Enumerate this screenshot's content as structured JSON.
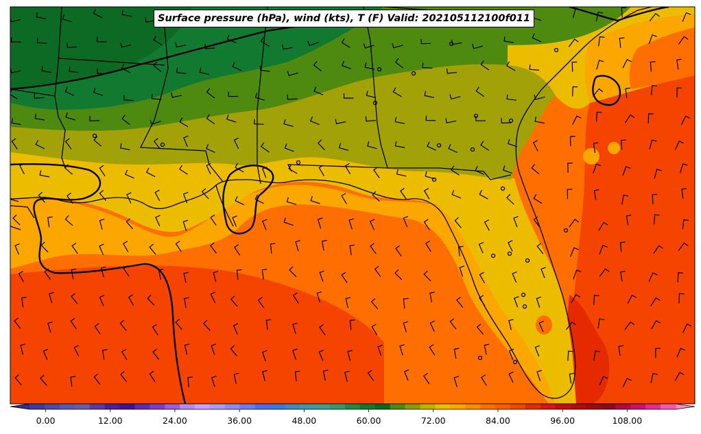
{
  "title": "Surface pressure (hPa), wind (kts), T (F) Valid: 202105112100f011",
  "colorbar": {
    "tick_labels": [
      "0.00",
      "12.00",
      "24.00",
      "36.00",
      "48.00",
      "60.00",
      "72.00",
      "84.00",
      "96.00",
      "108.00"
    ],
    "tick_values": [
      0,
      12,
      24,
      36,
      48,
      60,
      72,
      84,
      96,
      108
    ],
    "range": [
      -6,
      120
    ],
    "step": 3,
    "colors": [
      "#2e2e8c",
      "#3c3ca0",
      "#4a4aa8",
      "#5858b0",
      "#6a5aac",
      "#5b3aa8",
      "#4a1fa0",
      "#3d1296",
      "#5e2ab8",
      "#7a3ccc",
      "#9a5ee0",
      "#b48af0",
      "#c8a0ff",
      "#a89cf8",
      "#8a8cf4",
      "#6a7cf4",
      "#4a6cf4",
      "#3a78e0",
      "#3a8ac4",
      "#3a9ab0",
      "#38a090",
      "#2f9a6c",
      "#1f8a48",
      "#127a30",
      "#0a6a1a",
      "#4a8a10",
      "#8a9a10",
      "#c2b000",
      "#ecbc00",
      "#fca600",
      "#ff8c00",
      "#ff6e00",
      "#ff5a00",
      "#f54400",
      "#e62a00",
      "#d81414",
      "#c80a0a",
      "#b40a0a",
      "#a00a0a",
      "#8c0a1a",
      "#b00a40",
      "#d0106a",
      "#e82a8c",
      "#f25aaa",
      "#f88ac8"
    ]
  },
  "map_colors": {
    "t_40s_dark_green": "#127a30",
    "t_50s_green": "#4e8a10",
    "t_60s_olive": "#a2a208",
    "t_70s_gold": "#ecbc00",
    "t_75_amber": "#fca600",
    "t_80_orange": "#ff6e00",
    "t_85_deep_orange": "#f54400",
    "t_90_red_orange": "#e62a00"
  }
}
